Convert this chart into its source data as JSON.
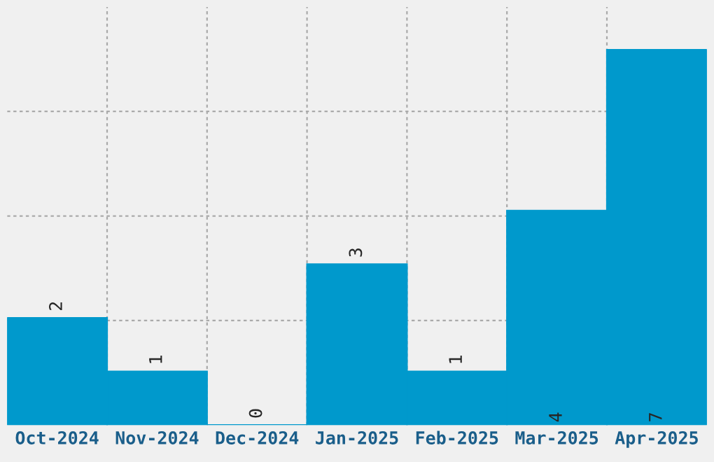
{
  "chart_data": {
    "type": "bar",
    "categories": [
      "Oct-2024",
      "Nov-2024",
      "Dec-2024",
      "Jan-2025",
      "Feb-2025",
      "Mar-2025",
      "Apr-2025"
    ],
    "values": [
      2,
      1,
      0,
      3,
      1,
      4,
      7
    ],
    "color": "#0099cc",
    "ylim": [
      0,
      7.8
    ],
    "yticks": [
      {
        "value": 1.95,
        "label": null
      },
      {
        "value": 3.9,
        "label": null
      },
      {
        "value": 5.85,
        "label": null
      }
    ],
    "grid": true,
    "data_labels": true
  }
}
